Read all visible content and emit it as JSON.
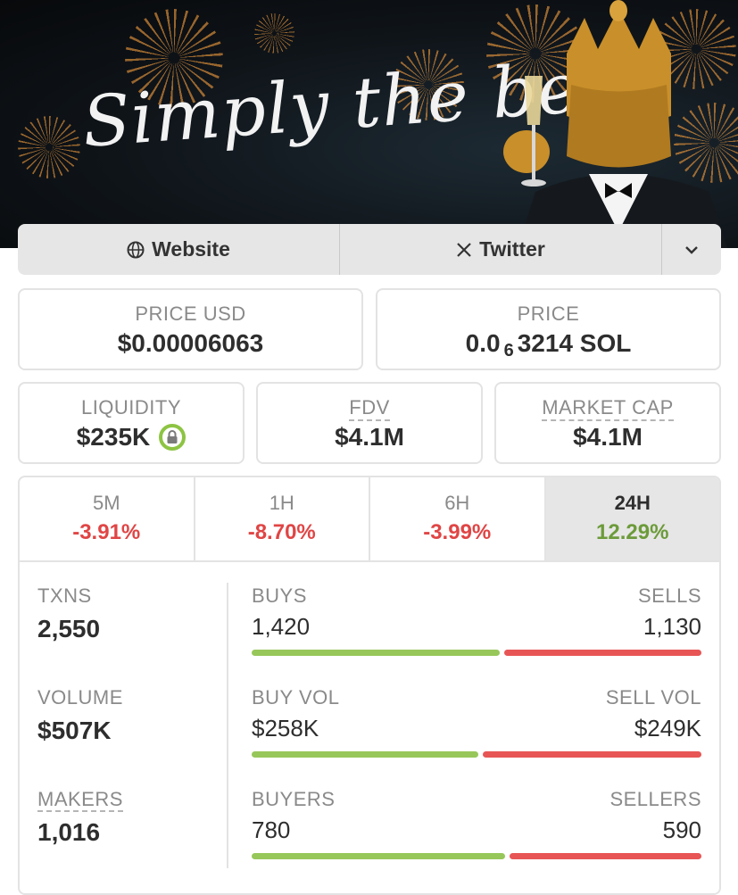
{
  "banner": {
    "slogan": "Simply the best."
  },
  "links": {
    "website_label": "Website",
    "twitter_label": "Twitter"
  },
  "price_usd": {
    "label": "PRICE USD",
    "value": "$0.00006063"
  },
  "price_native": {
    "label": "PRICE",
    "prefix": "0.0",
    "zeros": "6",
    "suffix": "3214 SOL"
  },
  "liquidity": {
    "label": "LIQUIDITY",
    "value": "$235K"
  },
  "fdv": {
    "label": "FDV",
    "value": "$4.1M"
  },
  "market_cap": {
    "label": "MARKET CAP",
    "value": "$4.1M"
  },
  "timeframes": [
    {
      "label": "5M",
      "change": "-3.91%",
      "direction": "down"
    },
    {
      "label": "1H",
      "change": "-8.70%",
      "direction": "down"
    },
    {
      "label": "6H",
      "change": "-3.99%",
      "direction": "down"
    },
    {
      "label": "24H",
      "change": "12.29%",
      "direction": "up",
      "active": true
    }
  ],
  "stats": {
    "txns": {
      "label": "TXNS",
      "value": "2,550"
    },
    "volume": {
      "label": "VOLUME",
      "value": "$507K"
    },
    "makers": {
      "label": "MAKERS",
      "value": "1,016"
    }
  },
  "splits": {
    "txns": {
      "left_label": "BUYS",
      "left_value": "1,420",
      "right_label": "SELLS",
      "right_value": "1,130",
      "buy_share": 0.557
    },
    "volume": {
      "left_label": "BUY VOL",
      "left_value": "$258K",
      "right_label": "SELL VOL",
      "right_value": "$249K",
      "buy_share": 0.509
    },
    "makers": {
      "left_label": "BUYERS",
      "left_value": "780",
      "right_label": "SELLERS",
      "right_value": "590",
      "buy_share": 0.569
    }
  },
  "colors": {
    "positive": "#6c9b3a",
    "negative": "#e04545",
    "buy_bar": "#97c75a",
    "sell_bar": "#e85555"
  }
}
